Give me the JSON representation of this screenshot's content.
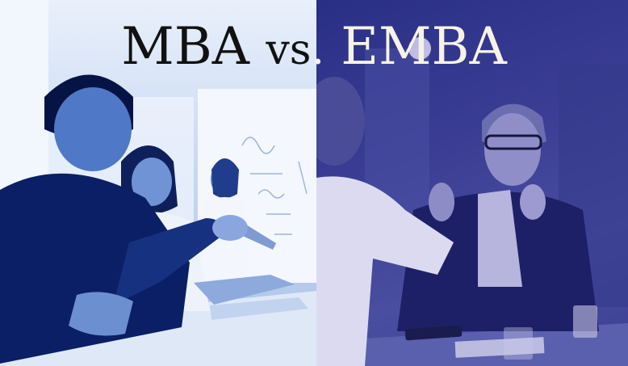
{
  "title": {
    "left_word": "MBA",
    "middle": "vs",
    "dot": ".",
    "right_word": "EMBA"
  },
  "colors": {
    "left_tint": "#2f63c8",
    "right_tint": "#2e3290",
    "title_dark": "#111111",
    "title_light": "#f6f2e6"
  }
}
